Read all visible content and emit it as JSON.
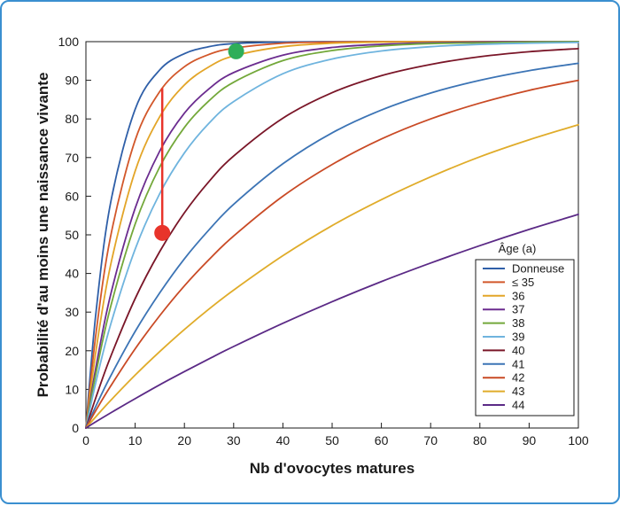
{
  "chart_data": {
    "type": "line",
    "title": "",
    "xlabel": "Nb d'ovocytes matures",
    "ylabel": "Probabilité d'au moins une naissance vivante",
    "xlim": [
      0,
      100
    ],
    "ylim": [
      0,
      100
    ],
    "x_ticks": [
      "0",
      "10",
      "20",
      "30",
      "40",
      "50",
      "60",
      "70",
      "80",
      "90",
      "100"
    ],
    "y_ticks": [
      "0",
      "10",
      "20",
      "30",
      "40",
      "50",
      "60",
      "70",
      "80",
      "90",
      "100"
    ],
    "grid": false,
    "legend": {
      "title": "Âge (a)",
      "placement": "bottom-right"
    },
    "x": [
      0,
      2,
      5,
      10,
      15,
      20,
      25,
      30,
      40,
      50,
      60,
      70,
      80,
      90,
      100
    ],
    "series": [
      {
        "name": "Donneuse",
        "color": "#2f5fa8",
        "values": [
          0,
          29.4,
          58.2,
          82.5,
          92.7,
          96.9,
          98.7,
          99.5,
          99.9,
          100,
          100,
          100,
          100,
          100,
          100
        ]
      },
      {
        "name": "≤ 35",
        "color": "#d2572a",
        "values": [
          0,
          24.0,
          49.5,
          74.5,
          87.1,
          93.5,
          96.7,
          98.3,
          99.6,
          99.9,
          100,
          100,
          100,
          100,
          100
        ]
      },
      {
        "name": "36",
        "color": "#e3a528",
        "values": [
          0,
          19.6,
          42.1,
          66.5,
          80.6,
          88.8,
          93.5,
          96.3,
          98.7,
          99.6,
          99.9,
          100,
          100,
          100,
          100
        ]
      },
      {
        "name": "37",
        "color": "#6b2c8f",
        "values": [
          0,
          15.5,
          34.4,
          56.9,
          71.7,
          81.5,
          87.8,
          92.0,
          96.5,
          98.5,
          99.3,
          99.7,
          99.9,
          100,
          100
        ]
      },
      {
        "name": "38",
        "color": "#73a83a",
        "values": [
          0,
          13.9,
          31.3,
          52.8,
          67.6,
          77.8,
          84.7,
          89.5,
          95.1,
          97.7,
          98.9,
          99.5,
          99.7,
          99.9,
          100
        ]
      },
      {
        "name": "39",
        "color": "#6fb4de",
        "values": [
          0,
          11.7,
          26.7,
          46.3,
          60.7,
          71.2,
          78.9,
          84.5,
          91.7,
          95.5,
          97.6,
          98.7,
          99.3,
          99.6,
          99.8
        ]
      },
      {
        "name": "40",
        "color": "#7a1628",
        "values": [
          0,
          7.8,
          18.4,
          33.5,
          45.7,
          55.7,
          63.8,
          70.4,
          80.2,
          86.8,
          91.2,
          94.1,
          96.1,
          97.4,
          98.2
        ]
      },
      {
        "name": "41",
        "color": "#3c74b5",
        "values": [
          0,
          5.6,
          13.4,
          25.0,
          35.0,
          43.8,
          51.3,
          57.9,
          68.4,
          76.4,
          82.3,
          86.7,
          90.0,
          92.5,
          94.4
        ]
      },
      {
        "name": "42",
        "color": "#c94a25",
        "values": [
          0,
          4.5,
          10.8,
          20.5,
          29.1,
          36.8,
          43.6,
          49.7,
          60.0,
          68.2,
          74.8,
          80.0,
          84.1,
          87.4,
          90.0
        ]
      },
      {
        "name": "43",
        "color": "#e0ac2a",
        "values": [
          0,
          2.9,
          7.1,
          13.7,
          19.8,
          25.5,
          30.8,
          35.7,
          44.6,
          52.4,
          59.1,
          65.0,
          70.2,
          74.6,
          78.5
        ]
      },
      {
        "name": "44",
        "color": "#5b2a86",
        "values": [
          0,
          1.6,
          3.9,
          7.6,
          11.2,
          14.6,
          17.9,
          21.1,
          27.1,
          32.7,
          37.9,
          42.7,
          47.2,
          51.4,
          55.3
        ]
      }
    ],
    "annotations": [
      {
        "kind": "marker",
        "color": "#e8342b",
        "x": 15.5,
        "y": 50.5
      },
      {
        "kind": "marker",
        "color": "#2eae59",
        "x": 30.5,
        "y": 97.5
      },
      {
        "kind": "vertical-line",
        "color": "#e8342b",
        "x": 15.5,
        "y_from": 50.5,
        "y_to": 88
      }
    ]
  }
}
